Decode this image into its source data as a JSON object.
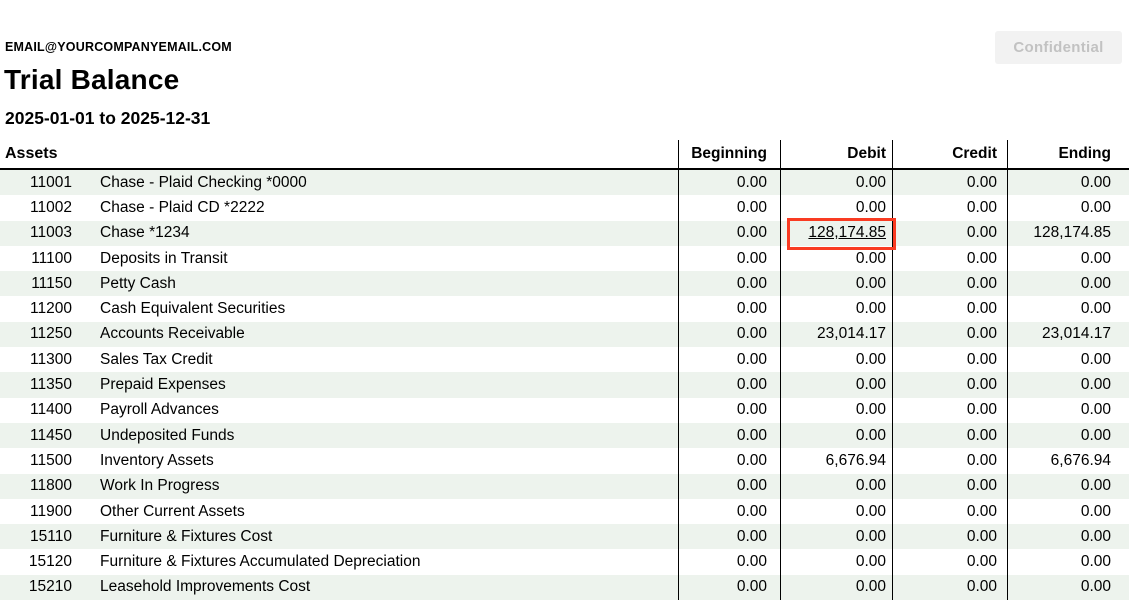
{
  "header": {
    "email": "EMAIL@YOURCOMPANYEMAIL.COM",
    "title": "Trial Balance",
    "date_range": "2025-01-01 to 2025-12-31",
    "confidential_label": "Confidential"
  },
  "table": {
    "section_label": "Assets",
    "columns": [
      "Beginning",
      "Debit",
      "Credit",
      "Ending"
    ],
    "rows": [
      {
        "account": "11001",
        "name": "Chase - Plaid Checking *0000",
        "beginning": "0.00",
        "debit": "0.00",
        "credit": "0.00",
        "ending": "0.00"
      },
      {
        "account": "11002",
        "name": "Chase - Plaid CD *2222",
        "beginning": "0.00",
        "debit": "0.00",
        "credit": "0.00",
        "ending": "0.00"
      },
      {
        "account": "11003",
        "name": "Chase *1234",
        "beginning": "0.00",
        "debit": "128,174.85",
        "credit": "0.00",
        "ending": "128,174.85",
        "debit_link": true,
        "debit_highlighted": true
      },
      {
        "account": "11100",
        "name": "Deposits in Transit",
        "beginning": "0.00",
        "debit": "0.00",
        "credit": "0.00",
        "ending": "0.00"
      },
      {
        "account": "11150",
        "name": "Petty Cash",
        "beginning": "0.00",
        "debit": "0.00",
        "credit": "0.00",
        "ending": "0.00"
      },
      {
        "account": "11200",
        "name": "Cash Equivalent Securities",
        "beginning": "0.00",
        "debit": "0.00",
        "credit": "0.00",
        "ending": "0.00"
      },
      {
        "account": "11250",
        "name": "Accounts Receivable",
        "beginning": "0.00",
        "debit": "23,014.17",
        "credit": "0.00",
        "ending": "23,014.17"
      },
      {
        "account": "11300",
        "name": "Sales Tax Credit",
        "beginning": "0.00",
        "debit": "0.00",
        "credit": "0.00",
        "ending": "0.00"
      },
      {
        "account": "11350",
        "name": "Prepaid Expenses",
        "beginning": "0.00",
        "debit": "0.00",
        "credit": "0.00",
        "ending": "0.00"
      },
      {
        "account": "11400",
        "name": "Payroll Advances",
        "beginning": "0.00",
        "debit": "0.00",
        "credit": "0.00",
        "ending": "0.00"
      },
      {
        "account": "11450",
        "name": "Undeposited Funds",
        "beginning": "0.00",
        "debit": "0.00",
        "credit": "0.00",
        "ending": "0.00"
      },
      {
        "account": "11500",
        "name": "Inventory Assets",
        "beginning": "0.00",
        "debit": "6,676.94",
        "credit": "0.00",
        "ending": "6,676.94"
      },
      {
        "account": "11800",
        "name": "Work In Progress",
        "beginning": "0.00",
        "debit": "0.00",
        "credit": "0.00",
        "ending": "0.00"
      },
      {
        "account": "11900",
        "name": "Other Current Assets",
        "beginning": "0.00",
        "debit": "0.00",
        "credit": "0.00",
        "ending": "0.00"
      },
      {
        "account": "15110",
        "name": "Furniture & Fixtures Cost",
        "beginning": "0.00",
        "debit": "0.00",
        "credit": "0.00",
        "ending": "0.00"
      },
      {
        "account": "15120",
        "name": "Furniture & Fixtures Accumulated Depreciation",
        "beginning": "0.00",
        "debit": "0.00",
        "credit": "0.00",
        "ending": "0.00"
      },
      {
        "account": "15210",
        "name": "Leasehold Improvements Cost",
        "beginning": "0.00",
        "debit": "0.00",
        "credit": "0.00",
        "ending": "0.00"
      }
    ]
  },
  "colors": {
    "row_alt_bg": "#edf3ed",
    "accent_red": "#f93b22",
    "badge_bg": "#f2f2f2",
    "badge_text": "#c2c2c2"
  }
}
